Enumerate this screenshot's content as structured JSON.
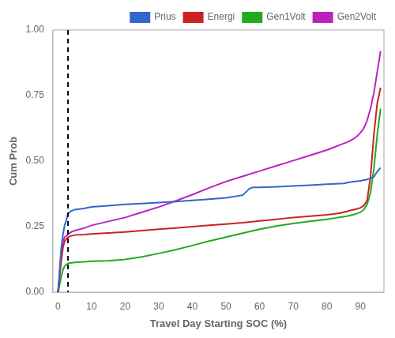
{
  "chart_data": {
    "type": "line",
    "xlabel": "Travel Day Starting SOC (%)",
    "ylabel": "Cum Prob",
    "xlim": [
      -1.5,
      97
    ],
    "ylim": [
      0.0,
      1.0
    ],
    "xticks": [
      0,
      10,
      20,
      30,
      40,
      50,
      60,
      70,
      80,
      90
    ],
    "yticks": [
      {
        "value": 0.0,
        "label": "0.00"
      },
      0.25,
      {
        "value": 0.5,
        "label": "0.50"
      },
      0.75,
      {
        "value": 1.0,
        "label": "1.00"
      }
    ],
    "grid": false,
    "legend": "upper right",
    "annotations": [
      {
        "type": "vline",
        "x": 3,
        "line_style": "dashed",
        "color": "#000000"
      }
    ],
    "series": [
      {
        "name": "Prius",
        "color": "#3366cc",
        "x": [
          0,
          0.3,
          0.6,
          1.0,
          1.5,
          2.0,
          2.5,
          3.0,
          4.0,
          5.0,
          8.0,
          10,
          15,
          20,
          25,
          30,
          35,
          40,
          45,
          50,
          55,
          57,
          58,
          60,
          65,
          70,
          75,
          80,
          85,
          87,
          90,
          92,
          93,
          94,
          95,
          96
        ],
        "values": [
          0.0,
          0.04,
          0.1,
          0.17,
          0.22,
          0.255,
          0.275,
          0.3,
          0.31,
          0.315,
          0.32,
          0.325,
          0.33,
          0.335,
          0.338,
          0.342,
          0.346,
          0.35,
          0.355,
          0.36,
          0.37,
          0.395,
          0.4,
          0.4,
          0.402,
          0.405,
          0.408,
          0.412,
          0.415,
          0.42,
          0.425,
          0.43,
          0.435,
          0.44,
          0.46,
          0.475
        ]
      },
      {
        "name": "Energi",
        "color": "#cc2222",
        "x": [
          0,
          0.3,
          0.6,
          1.0,
          1.5,
          2.0,
          3.0,
          4.0,
          5.0,
          8.0,
          10,
          15,
          20,
          25,
          30,
          35,
          40,
          45,
          50,
          55,
          60,
          65,
          70,
          75,
          80,
          82,
          84,
          86,
          87,
          88,
          89,
          90,
          91,
          92,
          93,
          94,
          95,
          96
        ],
        "values": [
          0.0,
          0.03,
          0.07,
          0.12,
          0.17,
          0.195,
          0.21,
          0.215,
          0.218,
          0.22,
          0.222,
          0.226,
          0.23,
          0.235,
          0.24,
          0.245,
          0.25,
          0.255,
          0.26,
          0.265,
          0.272,
          0.278,
          0.285,
          0.29,
          0.295,
          0.298,
          0.302,
          0.308,
          0.312,
          0.315,
          0.318,
          0.322,
          0.33,
          0.35,
          0.44,
          0.6,
          0.72,
          0.78
        ]
      },
      {
        "name": "Gen1Volt",
        "color": "#22aa22",
        "x": [
          0,
          0.3,
          0.6,
          1.0,
          1.5,
          2.0,
          3.0,
          4.0,
          5.0,
          8.0,
          10,
          15,
          20,
          25,
          30,
          35,
          40,
          45,
          50,
          55,
          60,
          65,
          70,
          75,
          80,
          82,
          84,
          86,
          87,
          88,
          89,
          90,
          91,
          92,
          93,
          94,
          95,
          96
        ],
        "values": [
          0.0,
          0.015,
          0.035,
          0.06,
          0.085,
          0.1,
          0.11,
          0.112,
          0.114,
          0.116,
          0.118,
          0.12,
          0.125,
          0.135,
          0.148,
          0.162,
          0.178,
          0.195,
          0.21,
          0.225,
          0.24,
          0.252,
          0.262,
          0.27,
          0.278,
          0.282,
          0.286,
          0.29,
          0.293,
          0.296,
          0.3,
          0.305,
          0.315,
          0.335,
          0.38,
          0.47,
          0.6,
          0.7
        ]
      },
      {
        "name": "Gen2Volt",
        "color": "#bb22bb",
        "x": [
          0,
          0.3,
          0.6,
          1.0,
          1.5,
          2.0,
          3.0,
          4.0,
          5.0,
          8.0,
          10,
          15,
          20,
          25,
          30,
          35,
          40,
          45,
          50,
          55,
          60,
          65,
          70,
          75,
          80,
          82,
          84,
          86,
          87,
          88,
          89,
          90,
          91,
          92,
          93,
          94,
          95,
          96
        ],
        "values": [
          0.0,
          0.04,
          0.09,
          0.155,
          0.195,
          0.21,
          0.22,
          0.23,
          0.235,
          0.245,
          0.255,
          0.27,
          0.285,
          0.305,
          0.325,
          0.348,
          0.372,
          0.398,
          0.422,
          0.442,
          0.462,
          0.482,
          0.502,
          0.522,
          0.542,
          0.552,
          0.562,
          0.572,
          0.578,
          0.585,
          0.595,
          0.608,
          0.625,
          0.655,
          0.7,
          0.76,
          0.84,
          0.92
        ]
      }
    ]
  }
}
